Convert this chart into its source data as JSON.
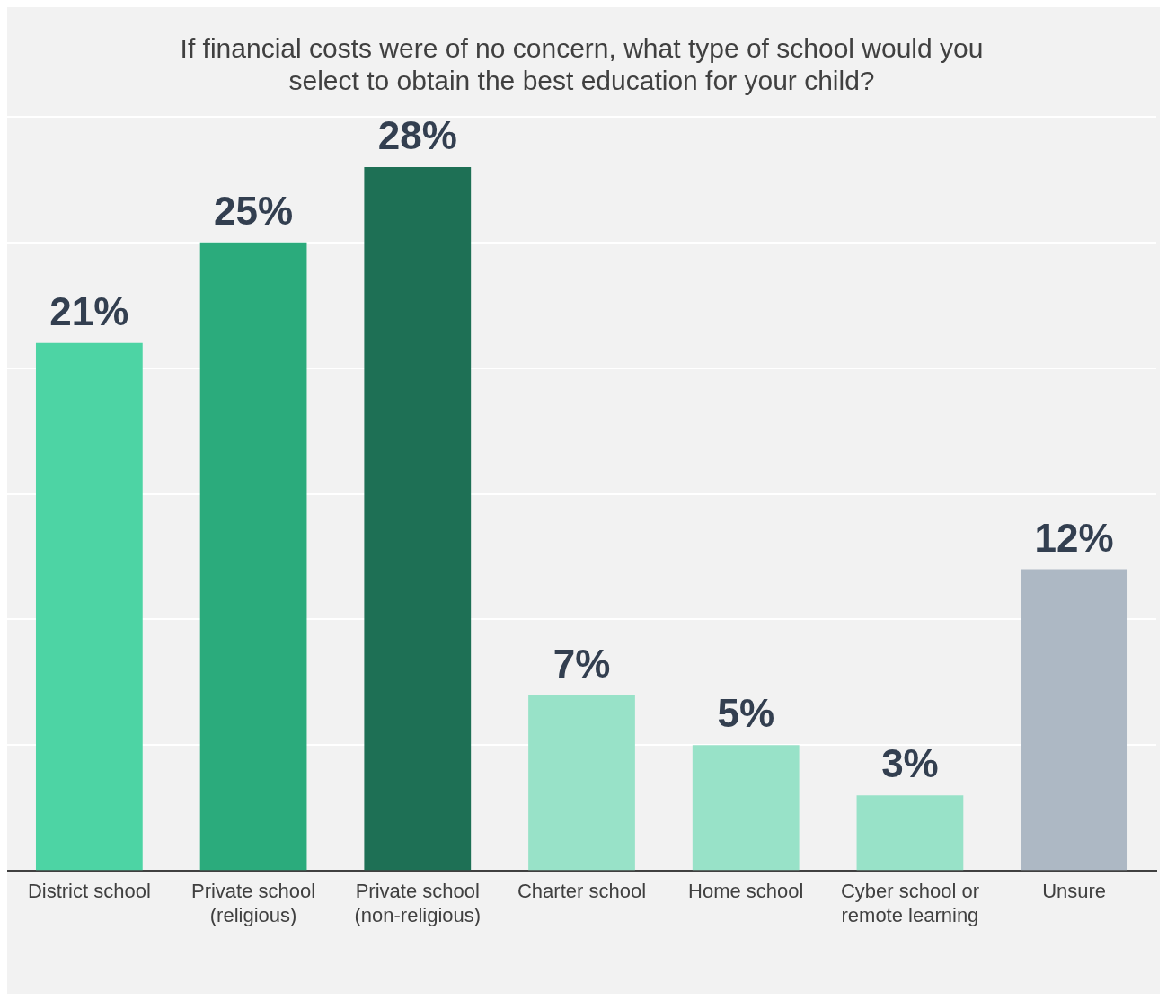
{
  "chart_data": {
    "type": "bar",
    "title": "If financial costs were of no concern, what type of school would you select to obtain the best education for your child?",
    "categories": [
      "District school",
      "Private school (religious)",
      "Private school (non-religious)",
      "Charter school",
      "Home school",
      "Cyber school or remote learning",
      "Unsure"
    ],
    "values": [
      21,
      25,
      28,
      7,
      5,
      3,
      12
    ],
    "colors": [
      "#4dd4a4",
      "#2bab7c",
      "#1e7055",
      "#98e2c8",
      "#98e2c8",
      "#98e2c8",
      "#adb8c4"
    ],
    "value_labels": [
      "21%",
      "25%",
      "28%",
      "7%",
      "5%",
      "3%",
      "12%"
    ],
    "grid": "y",
    "tick_labels": "x",
    "legend": false
  }
}
